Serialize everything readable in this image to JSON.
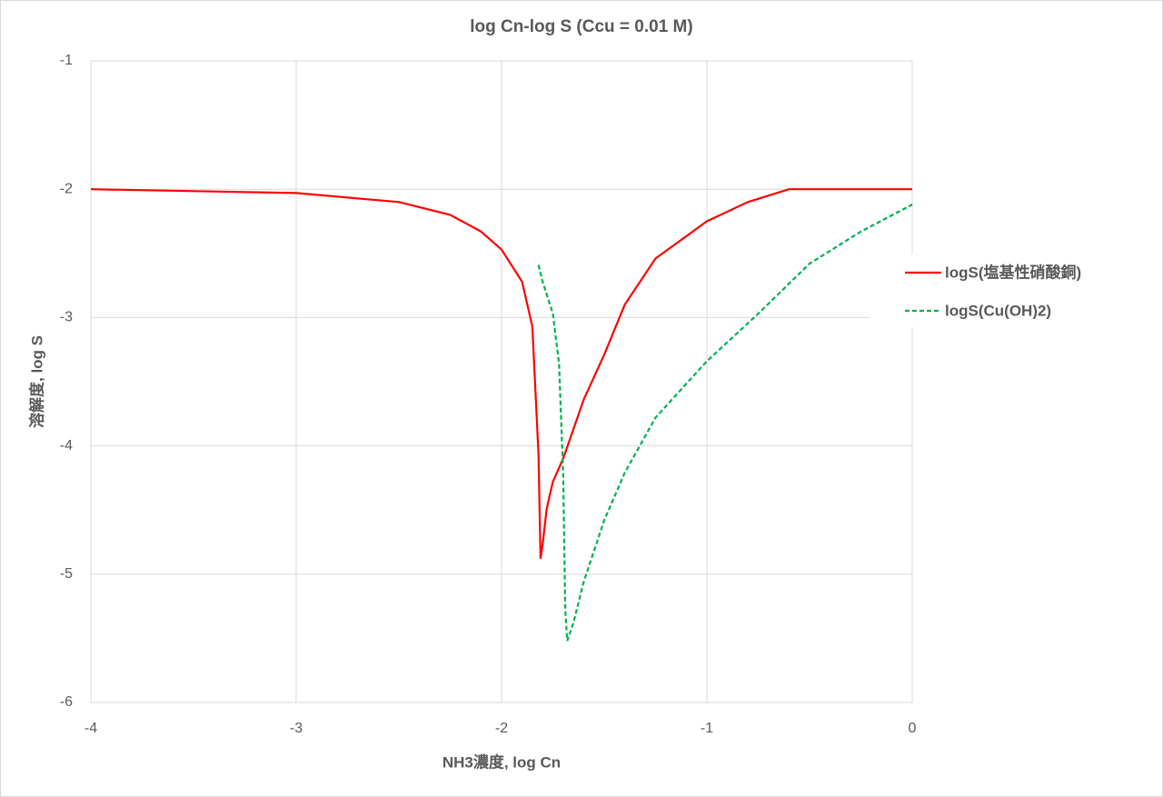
{
  "chart_data": {
    "type": "line",
    "title": "log Cn-log S (Ccu = 0.01 M)",
    "x_label": "NH3濃度, log Cn",
    "y_label": "溶解度, log S",
    "xlim": [
      -4,
      0
    ],
    "xticks": [
      -4,
      -3,
      -2,
      -1,
      0
    ],
    "ylim": [
      -6,
      -1
    ],
    "yticks": [
      -1,
      -2,
      -3,
      -4,
      -5,
      -6
    ],
    "grid": true,
    "legend": "right",
    "series": [
      {
        "name": "logS(塩基性硝酸銅)",
        "color": "#ff0000",
        "line_style": "solid",
        "x": [
          -4,
          -3,
          -2.5,
          -2.25,
          -2.1,
          -2.0,
          -1.9,
          -1.85,
          -1.82,
          -1.81,
          -1.8,
          -1.78,
          -1.75,
          -1.7,
          -1.6,
          -1.5,
          -1.4,
          -1.25,
          -1.0,
          -0.8,
          -0.6,
          0
        ],
        "values": [
          -2.0,
          -2.03,
          -2.1,
          -2.2,
          -2.33,
          -2.47,
          -2.72,
          -3.07,
          -4.07,
          -4.88,
          -4.77,
          -4.49,
          -4.28,
          -4.1,
          -3.64,
          -3.29,
          -2.9,
          -2.54,
          -2.25,
          -2.1,
          -2.0,
          -2.0
        ]
      },
      {
        "name": "logS(Cu(OH)2)",
        "color": "#00b050",
        "line_style": "dashed",
        "x": [
          -1.82,
          -1.8,
          -1.75,
          -1.72,
          -1.7,
          -1.69,
          -1.68,
          -1.65,
          -1.6,
          -1.5,
          -1.4,
          -1.25,
          -1.0,
          -0.75,
          -0.5,
          -0.25,
          0
        ],
        "values": [
          -2.59,
          -2.72,
          -2.97,
          -3.36,
          -4.21,
          -5.27,
          -5.52,
          -5.38,
          -5.06,
          -4.58,
          -4.21,
          -3.78,
          -3.34,
          -2.97,
          -2.58,
          -2.33,
          -2.12
        ]
      }
    ]
  }
}
